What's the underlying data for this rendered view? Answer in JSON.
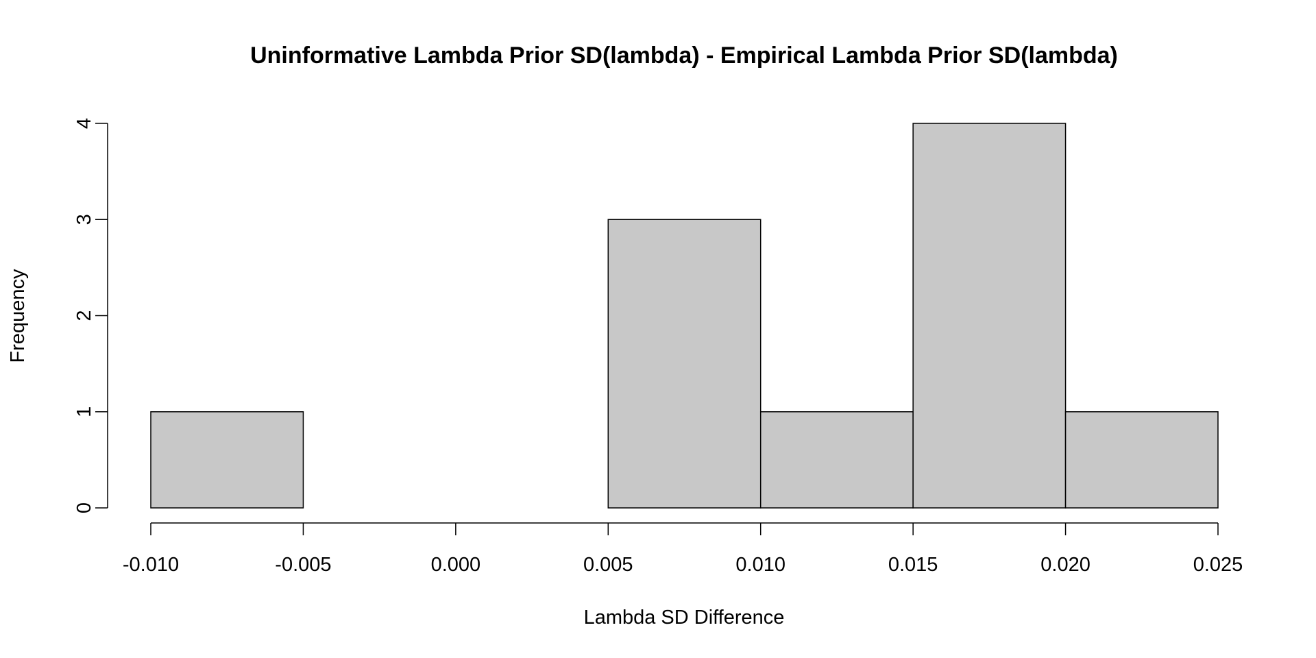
{
  "chart_data": {
    "type": "bar",
    "subtype": "histogram",
    "title": "Uninformative Lambda Prior SD(lambda) - Empirical Lambda Prior SD(lambda)",
    "xlabel": "Lambda SD Difference",
    "ylabel": "Frequency",
    "bins": [
      {
        "from": -0.01,
        "to": -0.005,
        "count": 1
      },
      {
        "from": -0.005,
        "to": 0.0,
        "count": 0
      },
      {
        "from": 0.0,
        "to": 0.005,
        "count": 0
      },
      {
        "from": 0.005,
        "to": 0.01,
        "count": 3
      },
      {
        "from": 0.01,
        "to": 0.015,
        "count": 1
      },
      {
        "from": 0.015,
        "to": 0.02,
        "count": 4
      },
      {
        "from": 0.02,
        "to": 0.025,
        "count": 1
      }
    ],
    "xlim": [
      -0.01,
      0.025
    ],
    "ylim": [
      0,
      4
    ],
    "xticks": [
      -0.01,
      -0.005,
      0.0,
      0.005,
      0.01,
      0.015,
      0.02,
      0.025
    ],
    "xtick_labels": [
      "-0.010",
      "-0.005",
      "0.000",
      "0.005",
      "0.010",
      "0.015",
      "0.020",
      "0.025"
    ],
    "yticks": [
      0,
      1,
      2,
      3,
      4
    ],
    "ytick_labels": [
      "0",
      "1",
      "2",
      "3",
      "4"
    ],
    "bar_fill": "#c8c8c8",
    "bar_stroke": "#000000",
    "grid": false
  }
}
